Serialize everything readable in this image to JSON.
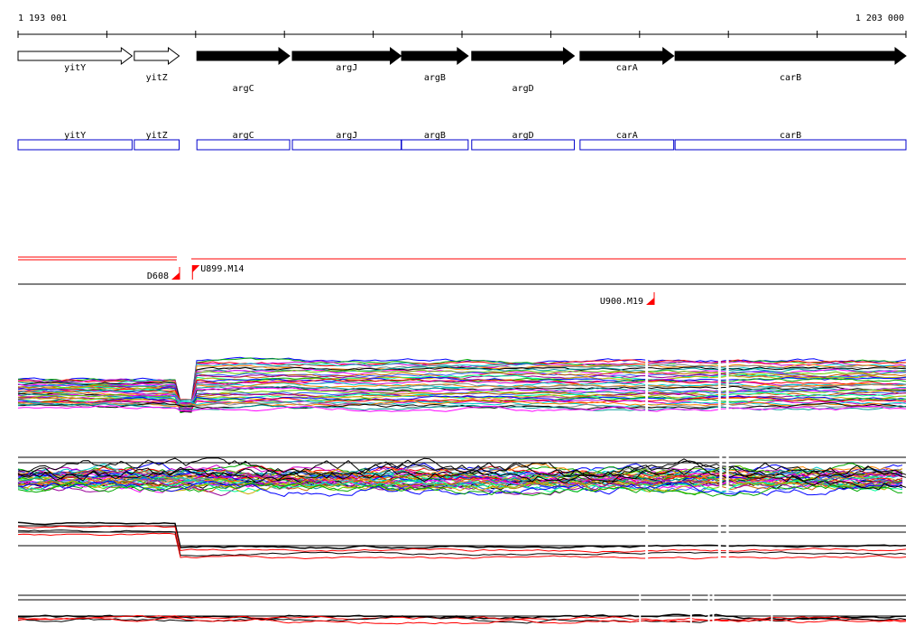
{
  "ruler": {
    "start_label": "1 193 001",
    "end_label": "1 203 000",
    "start": 1193001,
    "end": 1203000
  },
  "genes": [
    {
      "name": "yitY",
      "start": 1193001,
      "end": 1194285,
      "strand": "+",
      "filled": false,
      "label_row": 0
    },
    {
      "name": "yitZ",
      "start": 1194310,
      "end": 1194815,
      "strand": "+",
      "filled": false,
      "label_row": 1
    },
    {
      "name": "argC",
      "start": 1195015,
      "end": 1196060,
      "strand": "+",
      "filled": true,
      "label_row": 2
    },
    {
      "name": "argJ",
      "start": 1196090,
      "end": 1197315,
      "strand": "+",
      "filled": true,
      "label_row": 0
    },
    {
      "name": "argB",
      "start": 1197320,
      "end": 1198070,
      "strand": "+",
      "filled": true,
      "label_row": 1
    },
    {
      "name": "argD",
      "start": 1198110,
      "end": 1199265,
      "strand": "+",
      "filled": true,
      "label_row": 2
    },
    {
      "name": "carA",
      "start": 1199330,
      "end": 1200385,
      "strand": "+",
      "filled": true,
      "label_row": 0
    },
    {
      "name": "carB",
      "start": 1200400,
      "end": 1203000,
      "strand": "+",
      "filled": true,
      "label_row": 1
    }
  ],
  "features": [
    {
      "name": "D608",
      "position": 1194820,
      "side": "left"
    },
    {
      "name": "U899.M14",
      "position": 1194965,
      "side": "right"
    },
    {
      "name": "U900.M19",
      "position": 1200165,
      "side": "left"
    }
  ],
  "colors": {
    "gene_box": "#0000cc",
    "feature": "#ff0000",
    "track_palette": [
      "#0000ff",
      "#00aa00",
      "#ff0000",
      "#cc00cc",
      "#00cccc",
      "#ff8800",
      "#888888",
      "#000000",
      "#009999",
      "#ff00ff",
      "#66cc00",
      "#3366ff",
      "#cc6600",
      "#990099",
      "#00ff99",
      "#ccaa00"
    ]
  }
}
